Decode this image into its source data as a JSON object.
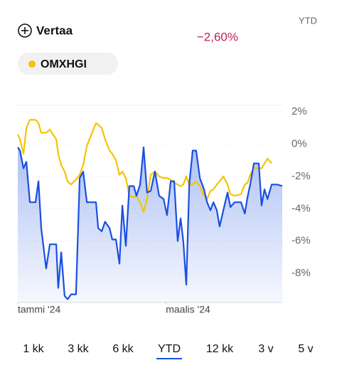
{
  "header": {
    "compare": "Vertaa",
    "period": "YTD",
    "change": "−2,60%",
    "legend_chip": "OMXHGI"
  },
  "chart_data": {
    "type": "line",
    "x": [
      0,
      0.9,
      2.3,
      3.5,
      4.9,
      7.2,
      8.4,
      9.5,
      11.5,
      13.0,
      15.6,
      16.4,
      17.6,
      19.0,
      20.2,
      21.6,
      23.6,
      25.1,
      26.5,
      28.0,
      31.7,
      32.6,
      34.0,
      35.4,
      37.2,
      38.3,
      39.8,
      41.2,
      42.4,
      43.8,
      45.2,
      47.0,
      48.1,
      49.6,
      51.0,
      52.4,
      53.9,
      55.6,
      57.3,
      59.1,
      60.5,
      62.0,
      63.4,
      64.8,
      66.0,
      67.1,
      68.3,
      69.5,
      70.9,
      72.3,
      73.8,
      75.5,
      76.7,
      78.1,
      79.3,
      80.7,
      81.8,
      83.3,
      85.0,
      86.2,
      87.9,
      90.5,
      92.0,
      93.1,
      94.2,
      95.7,
      97.7,
      98.8,
      100.0,
      101.2,
      102.9,
      105.2,
      107.2
    ],
    "series": [
      {
        "color": "#1a4fe0",
        "values": [
          -0.2,
          -0.4,
          -1.5,
          -1.1,
          -3.6,
          -3.6,
          -2.3,
          -5.2,
          -7.7,
          -6.2,
          -6.2,
          -8.9,
          -6.7,
          -9.4,
          -9.6,
          -9.3,
          -9.3,
          -2.1,
          -1.7,
          -3.6,
          -3.6,
          -5.2,
          -5.4,
          -4.8,
          -5.2,
          -5.9,
          -5.9,
          -7.4,
          -3.8,
          -6.3,
          -2.6,
          -2.6,
          -3.2,
          -2.5,
          -0.2,
          -3.0,
          -2.9,
          -1.7,
          -3.2,
          -3.4,
          -4.4,
          -2.3,
          -2.3,
          -6.0,
          -4.6,
          -6.0,
          -8.7,
          -2.5,
          -0.4,
          -0.4,
          -2.1,
          -2.8,
          -3.6,
          -4.1,
          -3.6,
          -4.1,
          -5.1,
          -4.1,
          -3.0,
          -3.9,
          -3.6,
          -3.6,
          -4.3,
          -3.3,
          -2.5,
          -1.2,
          -1.2,
          -3.8,
          -2.8,
          -3.4,
          -2.5,
          -2.5,
          -2.6
        ]
      },
      {
        "name": "OMXHGI",
        "color": "#f5c400",
        "values": [
          0.6,
          0.3,
          -0.6,
          1.0,
          1.5,
          1.5,
          1.3,
          0.7,
          0.7,
          0.9,
          0.3,
          -0.6,
          -1.3,
          -1.7,
          -2.3,
          -2.5,
          -2.2,
          -1.9,
          -1.3,
          -0.1,
          1.3,
          1.2,
          1.0,
          0.3,
          -0.4,
          -0.6,
          -1.0,
          -1.9,
          -1.7,
          -2.1,
          -3.2,
          -3.3,
          -3.2,
          -3.6,
          -4.2,
          -3.4,
          -1.9,
          -1.7,
          -2.0,
          -2.1,
          -2.1,
          -2.2,
          -2.4,
          -2.5,
          -2.6,
          -2.5,
          -2.0,
          -2.5,
          -2.5,
          -2.3,
          -2.6,
          -3.2,
          -3.4,
          -2.9,
          -2.8,
          -2.5,
          -2.3,
          -2.0,
          -2.5,
          -3.1,
          -3.2,
          -3.1,
          -2.5,
          -2.4,
          -1.9,
          -1.5,
          -1.5,
          -1.5,
          -1.2,
          -0.9,
          -1.2,
          null,
          null
        ]
      }
    ],
    "xlim": [
      0,
      107.2
    ],
    "xticks": [
      {
        "value": 0,
        "label": "tammi '24"
      },
      {
        "value": 60,
        "label": "maalis '24"
      }
    ],
    "ylim": [
      -9.8,
      2.4
    ],
    "yticks": [
      {
        "value": 2,
        "label": "2%"
      },
      {
        "value": 0,
        "label": "0%"
      },
      {
        "value": -2,
        "label": "-2%"
      },
      {
        "value": -4,
        "label": "-4%"
      },
      {
        "value": -6,
        "label": "-6%"
      },
      {
        "value": -8,
        "label": "-8%"
      }
    ],
    "grid": true
  },
  "periods": {
    "items": [
      "1 kk",
      "3 kk",
      "6 kk",
      "YTD",
      "12 kk",
      "3 v",
      "5 v"
    ],
    "selected": 3
  }
}
